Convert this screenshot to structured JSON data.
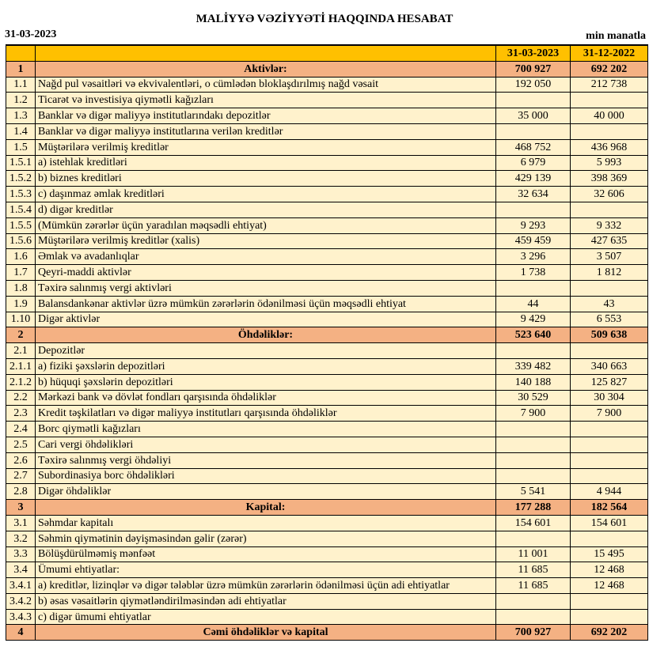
{
  "title": "MALİYYƏ VƏZİYYƏTİ HAQQINDA HESABAT",
  "date": "31-03-2023",
  "unit": "min manatla",
  "columns": [
    "31-03-2023",
    "31-12-2022"
  ],
  "colors": {
    "header": "#FFC000",
    "section": "#F4B183",
    "row": "#FFF2CC"
  },
  "rows": [
    {
      "n": "1",
      "label": "Aktivlər:",
      "a": "700 927",
      "b": "692 202",
      "section": true
    },
    {
      "n": "1.1",
      "label": "Nağd pul vəsaitləri və  ekvivalentləri, o cümlədən bloklaşdırılmış nağd vəsait",
      "a": "192 050",
      "b": "212 738"
    },
    {
      "n": "1.2",
      "label": "Ticarət və investisiya qiymətli kağızları",
      "a": "",
      "b": ""
    },
    {
      "n": "1.3",
      "label": "Banklar və digər maliyyə institutlarındakı depozitlər",
      "a": "35 000",
      "b": "40 000"
    },
    {
      "n": "1.4",
      "label": "Banklar və digər maliyyə institutlarına verilən kreditlər",
      "a": "",
      "b": ""
    },
    {
      "n": "1.5",
      "label": "Müştərilərə verilmiş kreditlər",
      "a": "468 752",
      "b": "436 968"
    },
    {
      "n": "1.5.1",
      "label": "a) istehlak kreditləri",
      "a": "6 979",
      "b": "5 993"
    },
    {
      "n": "1.5.2",
      "label": "b) biznes kreditləri",
      "a": "429 139",
      "b": "398 369"
    },
    {
      "n": "1.5.3",
      "label": "c) daşınmaz əmlak kreditləri",
      "a": "32 634",
      "b": "32 606"
    },
    {
      "n": "1.5.4",
      "label": "d) digər kreditlər",
      "a": "",
      "b": ""
    },
    {
      "n": "1.5.5",
      "label": "(Mümkün zərərlər üçün yaradılan məqsədli ehtiyat)",
      "a": "9 293",
      "b": "9 332"
    },
    {
      "n": "1.5.6",
      "label": "Müştərilərə verilmiş kreditlər (xalis)",
      "a": "459 459",
      "b": "427 635"
    },
    {
      "n": "1.6",
      "label": "Əmlak və avadanlıqlar",
      "a": "3 296",
      "b": "3 507"
    },
    {
      "n": "1.7",
      "label": "Qeyri-maddi aktivlər",
      "a": "1 738",
      "b": "1 812"
    },
    {
      "n": "1.8",
      "label": "Təxirə salınmış vergi aktivləri",
      "a": "",
      "b": ""
    },
    {
      "n": "1.9",
      "label": "Balansdankənar aktivlər üzrə mümkün zərərlərin ödənilməsi üçün məqsədli ehtiyat",
      "a": "44",
      "b": "43"
    },
    {
      "n": "1.10",
      "label": "Digər aktivlər",
      "a": "9 429",
      "b": "6 553"
    },
    {
      "n": "2",
      "label": "Öhdəliklər:",
      "a": "523 640",
      "b": "509 638",
      "section": true
    },
    {
      "n": "2.1",
      "label": "Depozitlər",
      "a": "",
      "b": ""
    },
    {
      "n": "2.1.1",
      "label": "a) fiziki şəxslərin depozitləri",
      "a": "339 482",
      "b": "340 663"
    },
    {
      "n": "2.1.2",
      "label": "b) hüquqi şəxslərin depozitləri",
      "a": "140 188",
      "b": "125 827"
    },
    {
      "n": "2.2",
      "label": "Mərkəzi bank və dövlət fondları qarşısında öhdəliklər",
      "a": "30 529",
      "b": "30 304"
    },
    {
      "n": "2.3",
      "label": "Kredit təşkilatları və digər maliyyə institutları qarşısında öhdəliklər",
      "a": "7 900",
      "b": "7 900"
    },
    {
      "n": "2.4",
      "label": "Borc qiymətli kağızları",
      "a": "",
      "b": ""
    },
    {
      "n": "2.5",
      "label": "Cari vergi öhdəlikləri",
      "a": "",
      "b": ""
    },
    {
      "n": "2.6",
      "label": "Təxirə salınmış vergi öhdəliyi",
      "a": "",
      "b": ""
    },
    {
      "n": "2.7",
      "label": "Subordinasiya borc öhdəlikləri",
      "a": "",
      "b": ""
    },
    {
      "n": "2.8",
      "label": "Digər öhdəliklər",
      "a": "5 541",
      "b": "4 944"
    },
    {
      "n": "3",
      "label": "Kapital:",
      "a": "177 288",
      "b": "182 564",
      "section": true
    },
    {
      "n": "3.1",
      "label": "Səhmdar kapitalı",
      "a": "154 601",
      "b": "154 601"
    },
    {
      "n": "3.2",
      "label": "Səhmin qiymətinin dəyişməsindən gəlir (zərər)",
      "a": "",
      "b": ""
    },
    {
      "n": "3.3",
      "label": "Bölüşdürülməmiş mənfəət",
      "a": "11 001",
      "b": "15 495"
    },
    {
      "n": "3.4",
      "label": "Ümumi ehtiyatlar:",
      "a": "11 685",
      "b": "12 468"
    },
    {
      "n": "3.4.1",
      "label": "a) kreditlər, lizinqlər və digər tələblər üzrə mümkün zərərlərin ödənilməsi üçün adi ehtiyatlar",
      "a": "11 685",
      "b": "12 468"
    },
    {
      "n": "3.4.2",
      "label": "b) əsas vəsaitlərin qiymətləndirilməsindən adi ehtiyatlar",
      "a": "",
      "b": ""
    },
    {
      "n": "3.4.3",
      "label": "c) digər ümumi ehtiyatlar",
      "a": "",
      "b": ""
    },
    {
      "n": "4",
      "label": "Cəmi öhdəliklər və kapital",
      "a": "700 927",
      "b": "692 202",
      "section": true
    }
  ]
}
